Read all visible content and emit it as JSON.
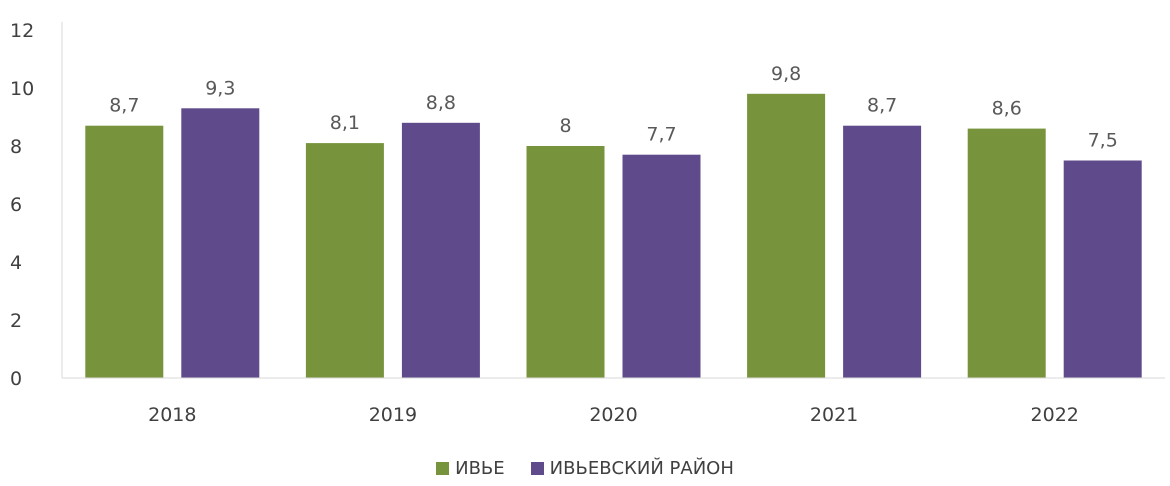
{
  "chart_data": {
    "type": "bar",
    "categories": [
      "2018",
      "2019",
      "2020",
      "2021",
      "2022"
    ],
    "series": [
      {
        "name": "ИВЬЕ",
        "values": [
          8.7,
          8.1,
          8,
          9.8,
          8.6
        ],
        "labels": [
          "8,7",
          "8,1",
          "8",
          "9,8",
          "8,6"
        ],
        "color": "#77933c"
      },
      {
        "name": "ИВЬЕВСКИЙ РАЙОН",
        "values": [
          9.3,
          8.8,
          7.7,
          8.7,
          7.5
        ],
        "labels": [
          "9,3",
          "8,8",
          "7,7",
          "8,7",
          "7,5"
        ],
        "color": "#5f4b8b"
      }
    ],
    "ylim": [
      0,
      12
    ],
    "yticks": [
      "0",
      "2",
      "4",
      "6",
      "8",
      "10",
      "12"
    ],
    "grid": false,
    "legend": "bottom"
  }
}
